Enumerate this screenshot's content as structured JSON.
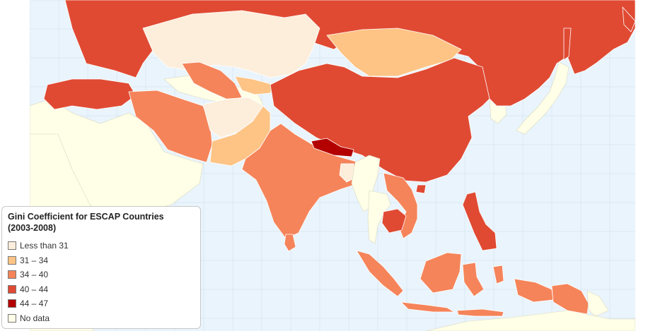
{
  "legend": {
    "title_line1": "Gini Coefficient for ESCAP Countries",
    "title_line2": "(2003-2008)",
    "items": [
      {
        "label": "Less than 31",
        "color": "#fdeedc"
      },
      {
        "label": "31 – 34",
        "color": "#fdc486"
      },
      {
        "label": "34 – 40",
        "color": "#f5845a"
      },
      {
        "label": "40 – 44",
        "color": "#e04a33"
      },
      {
        "label": "44 – 47",
        "color": "#b30000"
      },
      {
        "label": "No data",
        "color": "#ffffe8"
      }
    ]
  },
  "colors": {
    "ocean": "#eaf4fc",
    "grid": "#d3e4f3",
    "nodata": "#ffffe8"
  },
  "regions": [
    {
      "name": "Russia",
      "category": "40 – 44"
    },
    {
      "name": "Kazakhstan",
      "category": "Less than 31"
    },
    {
      "name": "Mongolia",
      "category": "31 – 34"
    },
    {
      "name": "China",
      "category": "40 – 44"
    },
    {
      "name": "Turkey",
      "category": "40 – 44"
    },
    {
      "name": "Iran",
      "category": "34 – 40"
    },
    {
      "name": "Turkmenistan",
      "category": "34 – 40"
    },
    {
      "name": "Uzbekistan",
      "category": "31 – 34"
    },
    {
      "name": "Afghanistan",
      "category": "Less than 31"
    },
    {
      "name": "Pakistan",
      "category": "31 – 34"
    },
    {
      "name": "India",
      "category": "34 – 40"
    },
    {
      "name": "Nepal",
      "category": "44 – 47"
    },
    {
      "name": "Bangladesh",
      "category": "Less than 31"
    },
    {
      "name": "Sri Lanka",
      "category": "34 – 40"
    },
    {
      "name": "Myanmar",
      "category": "No data"
    },
    {
      "name": "Thailand",
      "category": "No data"
    },
    {
      "name": "Cambodia",
      "category": "40 – 44"
    },
    {
      "name": "Vietnam",
      "category": "34 – 40"
    },
    {
      "name": "Philippines",
      "category": "40 – 44"
    },
    {
      "name": "Indonesia",
      "category": "34 – 40"
    },
    {
      "name": "Papua New Guinea",
      "category": "34 – 40"
    }
  ]
}
